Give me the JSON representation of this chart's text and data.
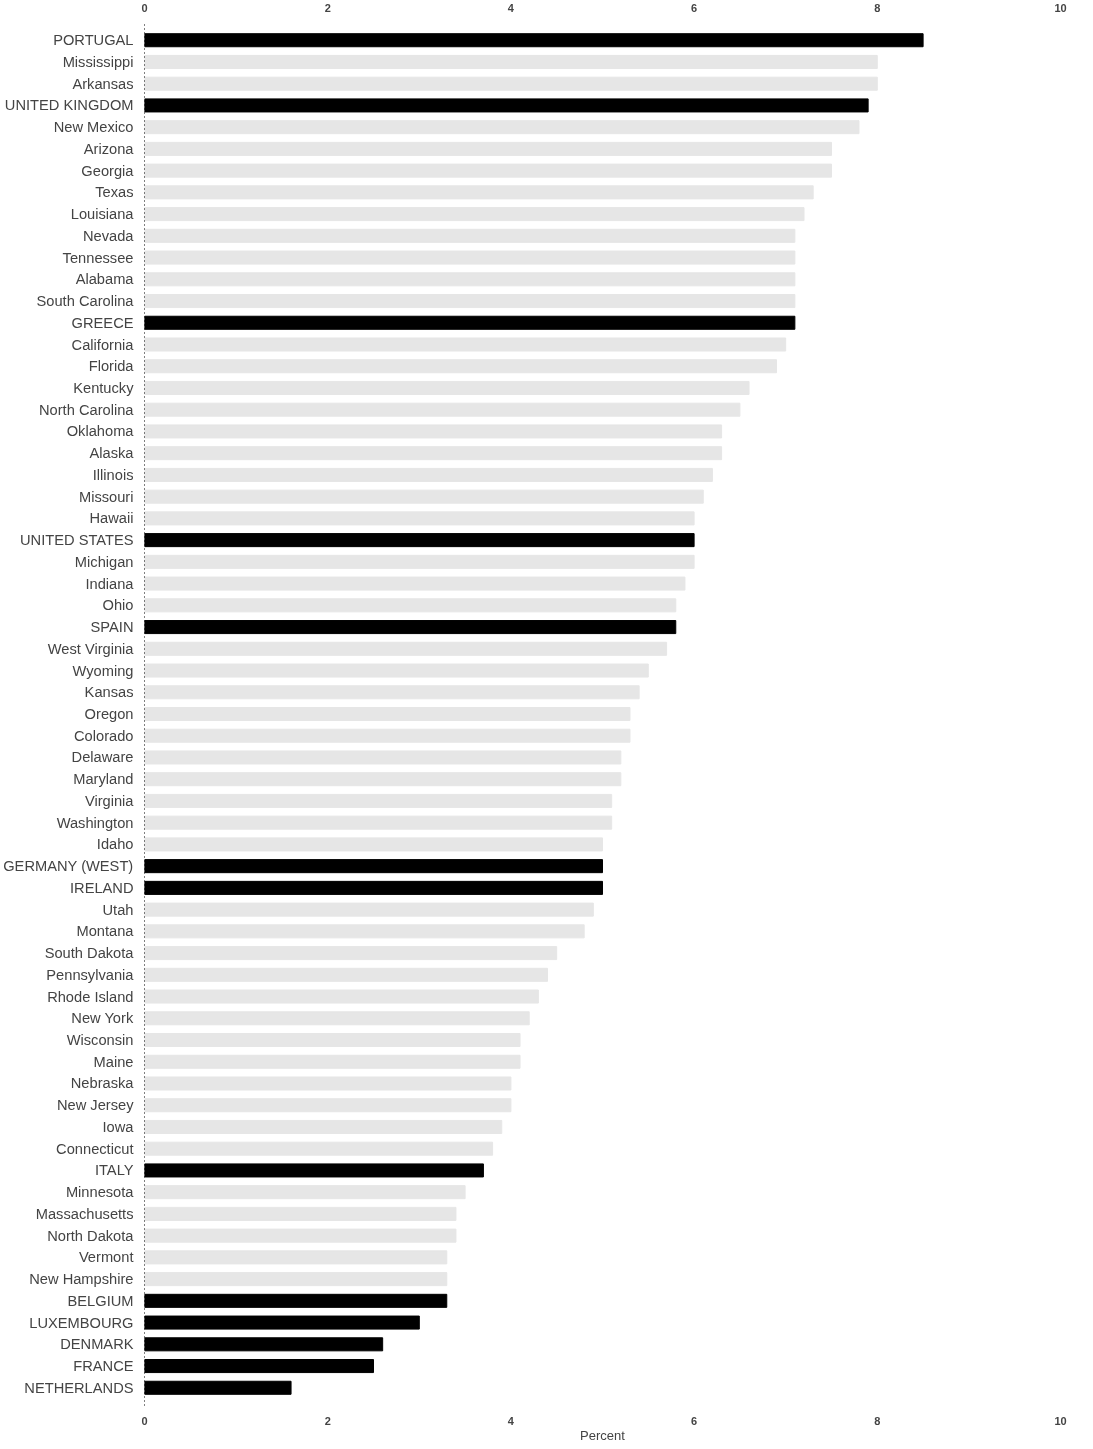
{
  "chart_data": {
    "type": "bar",
    "orientation": "horizontal",
    "xlabel": "Percent",
    "categories": [
      "PORTUGAL",
      "Mississippi",
      "Arkansas",
      "UNITED KINGDOM",
      "New Mexico",
      "Arizona",
      "Georgia",
      "Texas",
      "Louisiana",
      "Nevada",
      "Tennessee",
      "Alabama",
      "South Carolina",
      "GREECE",
      "California",
      "Florida",
      "Kentucky",
      "North Carolina",
      "Oklahoma",
      "Alaska",
      "Illinois",
      "Missouri",
      "Hawaii",
      "UNITED STATES",
      "Michigan",
      "Indiana",
      "Ohio",
      "SPAIN",
      "West Virginia",
      "Wyoming",
      "Kansas",
      "Oregon",
      "Colorado",
      "Delaware",
      "Maryland",
      "Virginia",
      "Washington",
      "Idaho",
      "GERMANY (WEST)",
      "IRELAND",
      "Utah",
      "Montana",
      "South Dakota",
      "Pennsylvania",
      "Rhode Island",
      "New York",
      "Wisconsin",
      "Maine",
      "Nebraska",
      "New Jersey",
      "Iowa",
      "Connecticut",
      "ITALY",
      "Minnesota",
      "Massachusetts",
      "North Dakota",
      "Vermont",
      "New Hampshire",
      "BELGIUM",
      "LUXEMBOURG",
      "DENMARK",
      "FRANCE",
      "NETHERLANDS"
    ],
    "values": [
      8.5,
      8.0,
      8.0,
      7.9,
      7.8,
      7.5,
      7.5,
      7.3,
      7.2,
      7.1,
      7.1,
      7.1,
      7.1,
      7.1,
      7.0,
      6.9,
      6.6,
      6.5,
      6.3,
      6.3,
      6.2,
      6.1,
      6.0,
      6.0,
      6.0,
      5.9,
      5.8,
      5.8,
      5.7,
      5.5,
      5.4,
      5.3,
      5.3,
      5.2,
      5.2,
      5.1,
      5.1,
      5.0,
      5.0,
      5.0,
      4.9,
      4.8,
      4.5,
      4.4,
      4.3,
      4.2,
      4.1,
      4.1,
      4.0,
      4.0,
      3.9,
      3.8,
      3.7,
      3.5,
      3.4,
      3.4,
      3.3,
      3.3,
      3.3,
      3.0,
      2.6,
      2.5,
      1.6
    ],
    "colors": [
      "#000000",
      "#e6e6e6",
      "#e6e6e6",
      "#000000",
      "#e6e6e6",
      "#e6e6e6",
      "#e6e6e6",
      "#e6e6e6",
      "#e6e6e6",
      "#e6e6e6",
      "#e6e6e6",
      "#e6e6e6",
      "#e6e6e6",
      "#000000",
      "#e6e6e6",
      "#e6e6e6",
      "#e6e6e6",
      "#e6e6e6",
      "#e6e6e6",
      "#e6e6e6",
      "#e6e6e6",
      "#e6e6e6",
      "#e6e6e6",
      "#000000",
      "#e6e6e6",
      "#e6e6e6",
      "#e6e6e6",
      "#000000",
      "#e6e6e6",
      "#e6e6e6",
      "#e6e6e6",
      "#e6e6e6",
      "#e6e6e6",
      "#e6e6e6",
      "#e6e6e6",
      "#e6e6e6",
      "#e6e6e6",
      "#e6e6e6",
      "#000000",
      "#000000",
      "#e6e6e6",
      "#e6e6e6",
      "#e6e6e6",
      "#e6e6e6",
      "#e6e6e6",
      "#e6e6e6",
      "#e6e6e6",
      "#e6e6e6",
      "#e6e6e6",
      "#e6e6e6",
      "#e6e6e6",
      "#e6e6e6",
      "#000000",
      "#e6e6e6",
      "#e6e6e6",
      "#e6e6e6",
      "#e6e6e6",
      "#e6e6e6",
      "#000000",
      "#000000",
      "#000000",
      "#000000",
      "#000000"
    ],
    "xlim": [
      0,
      10
    ],
    "xticks": [
      0,
      2,
      4,
      6,
      8,
      10
    ],
    "x2lim": [
      0,
      10
    ],
    "x2ticks": [
      0,
      2,
      4,
      6,
      8,
      10
    ],
    "grid": false
  }
}
